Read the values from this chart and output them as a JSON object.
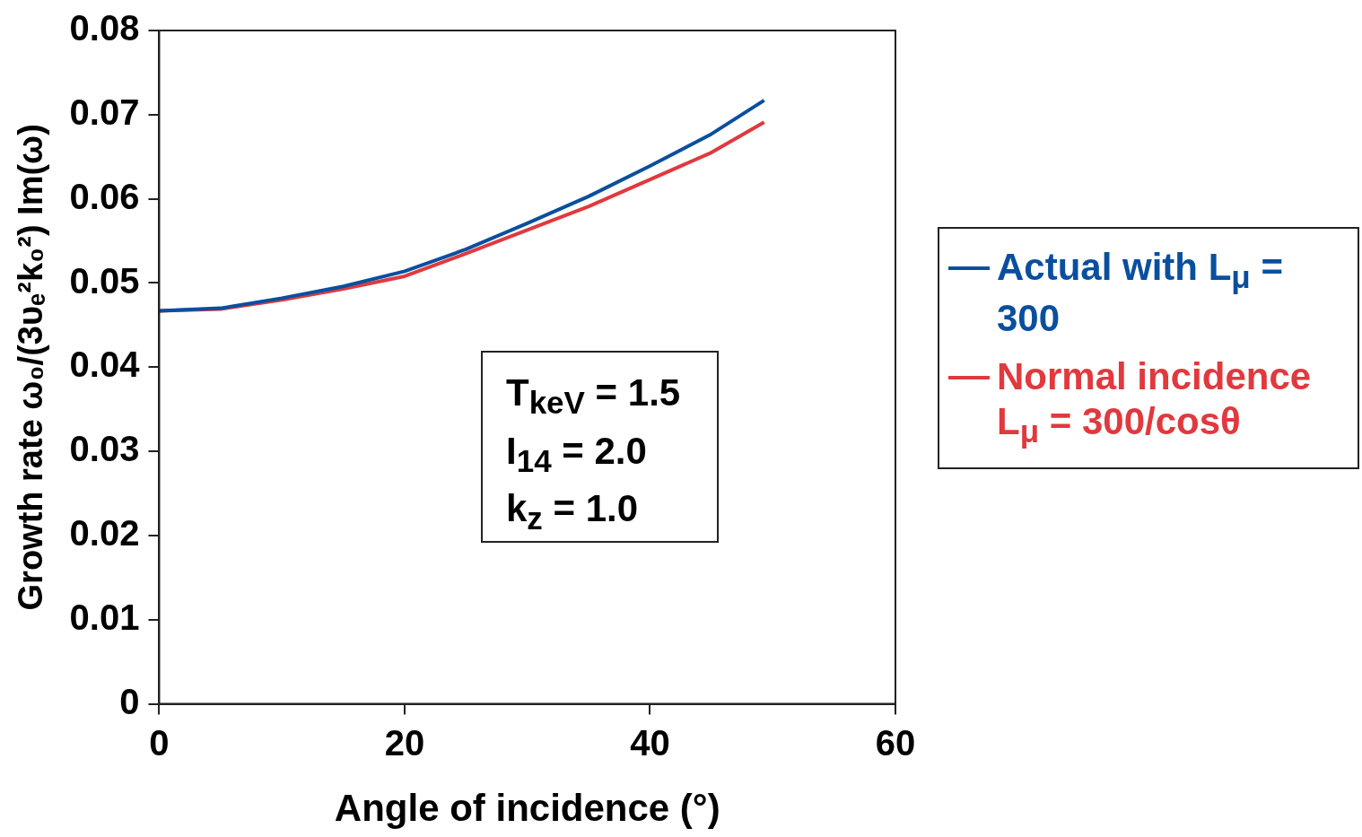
{
  "chart_data": {
    "type": "line",
    "xlabel": "Angle of incidence (°)",
    "ylabel": "Growth rate ω₀/(3υₑ²k₀²) Im(ω)",
    "xlim": [
      0,
      60
    ],
    "xticks": [
      0,
      20,
      40,
      60
    ],
    "ylim": [
      0,
      0.08
    ],
    "yticks": [
      0,
      0.01,
      0.02,
      0.03,
      0.04,
      0.05,
      0.06,
      0.07,
      0.08
    ],
    "grid": false,
    "legend": "right",
    "marker": "none",
    "line_style": "solid",
    "annotations": [
      "T$_{keV}$ = 1.5",
      "I$_{14}$ = 2.0",
      "k$_{z}$ = 1.0"
    ],
    "x": [
      0,
      5,
      10,
      15,
      20,
      25,
      30,
      35,
      40,
      45,
      49.3
    ],
    "series": [
      {
        "name": "Actual with L$_{μ}$ = 300",
        "color": "#0a4f9e",
        "values": [
          0.0467,
          0.047,
          0.0482,
          0.0496,
          0.0514,
          0.054,
          0.0571,
          0.0603,
          0.0639,
          0.0677,
          0.0717
        ]
      },
      {
        "name": "Normal incidence L$_{μ}$ = 300/cosθ",
        "color": "#e0393e",
        "values": [
          0.0467,
          0.0469,
          0.048,
          0.0493,
          0.0508,
          0.0535,
          0.0563,
          0.0591,
          0.0623,
          0.0655,
          0.0691
        ]
      }
    ]
  }
}
